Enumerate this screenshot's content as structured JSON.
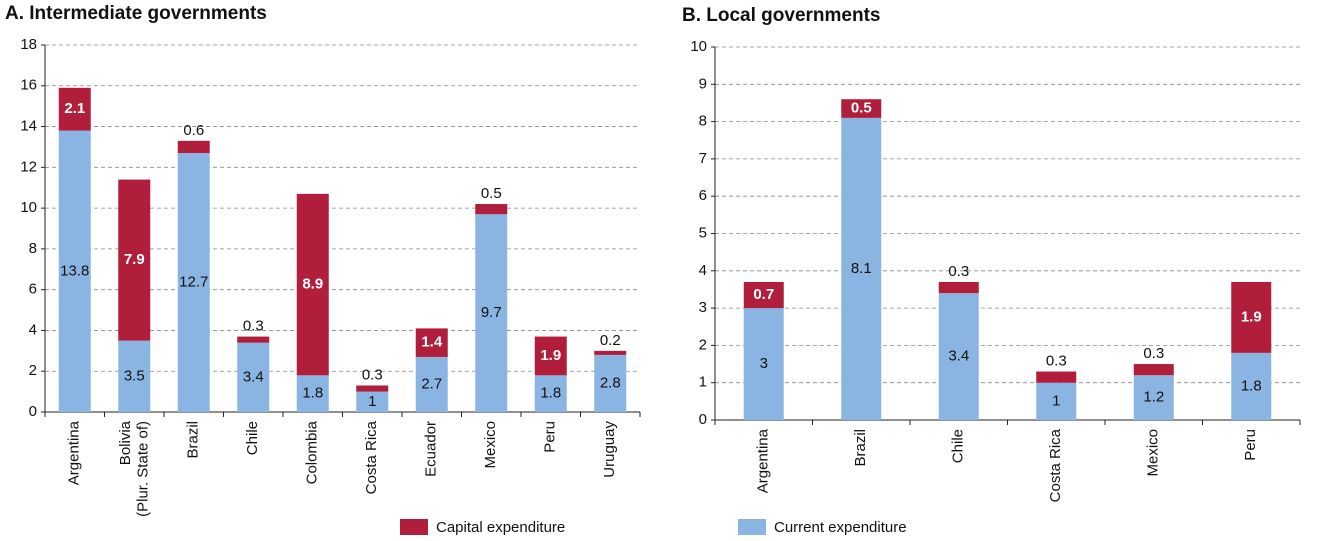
{
  "chart_data": [
    {
      "type": "bar",
      "stacked": true,
      "title": "A. Intermediate governments",
      "categories": [
        "Argentina",
        "Bolivia (Plur. State of)",
        "Brazil",
        "Chile",
        "Colombia",
        "Costa Rica",
        "Ecuador",
        "Mexico",
        "Peru",
        "Uruguay"
      ],
      "series": [
        {
          "name": "Current expenditure",
          "color": "#8ab5e2",
          "values": [
            13.8,
            3.5,
            12.7,
            3.4,
            1.8,
            1.0,
            2.7,
            9.7,
            1.8,
            2.8
          ]
        },
        {
          "name": "Capital expenditure",
          "color": "#b01e3c",
          "values": [
            2.1,
            7.9,
            0.6,
            0.3,
            8.9,
            0.3,
            1.4,
            0.5,
            1.9,
            0.2
          ]
        }
      ],
      "ylim": [
        0,
        18
      ],
      "yticks": [
        0,
        2,
        4,
        6,
        8,
        10,
        12,
        14,
        16,
        18
      ],
      "grid": true
    },
    {
      "type": "bar",
      "stacked": true,
      "title": "B. Local governments",
      "categories": [
        "Argentina",
        "Brazil",
        "Chile",
        "Costa Rica",
        "Mexico",
        "Peru"
      ],
      "series": [
        {
          "name": "Current expenditure",
          "color": "#8ab5e2",
          "values": [
            3.0,
            8.1,
            3.4,
            1.0,
            1.2,
            1.8
          ]
        },
        {
          "name": "Capital expenditure",
          "color": "#b01e3c",
          "values": [
            0.7,
            0.5,
            0.3,
            0.3,
            0.3,
            1.9
          ]
        }
      ],
      "ylim": [
        0,
        10
      ],
      "yticks": [
        0,
        1,
        2,
        3,
        4,
        5,
        6,
        7,
        8,
        9,
        10
      ],
      "grid": true
    }
  ]
}
